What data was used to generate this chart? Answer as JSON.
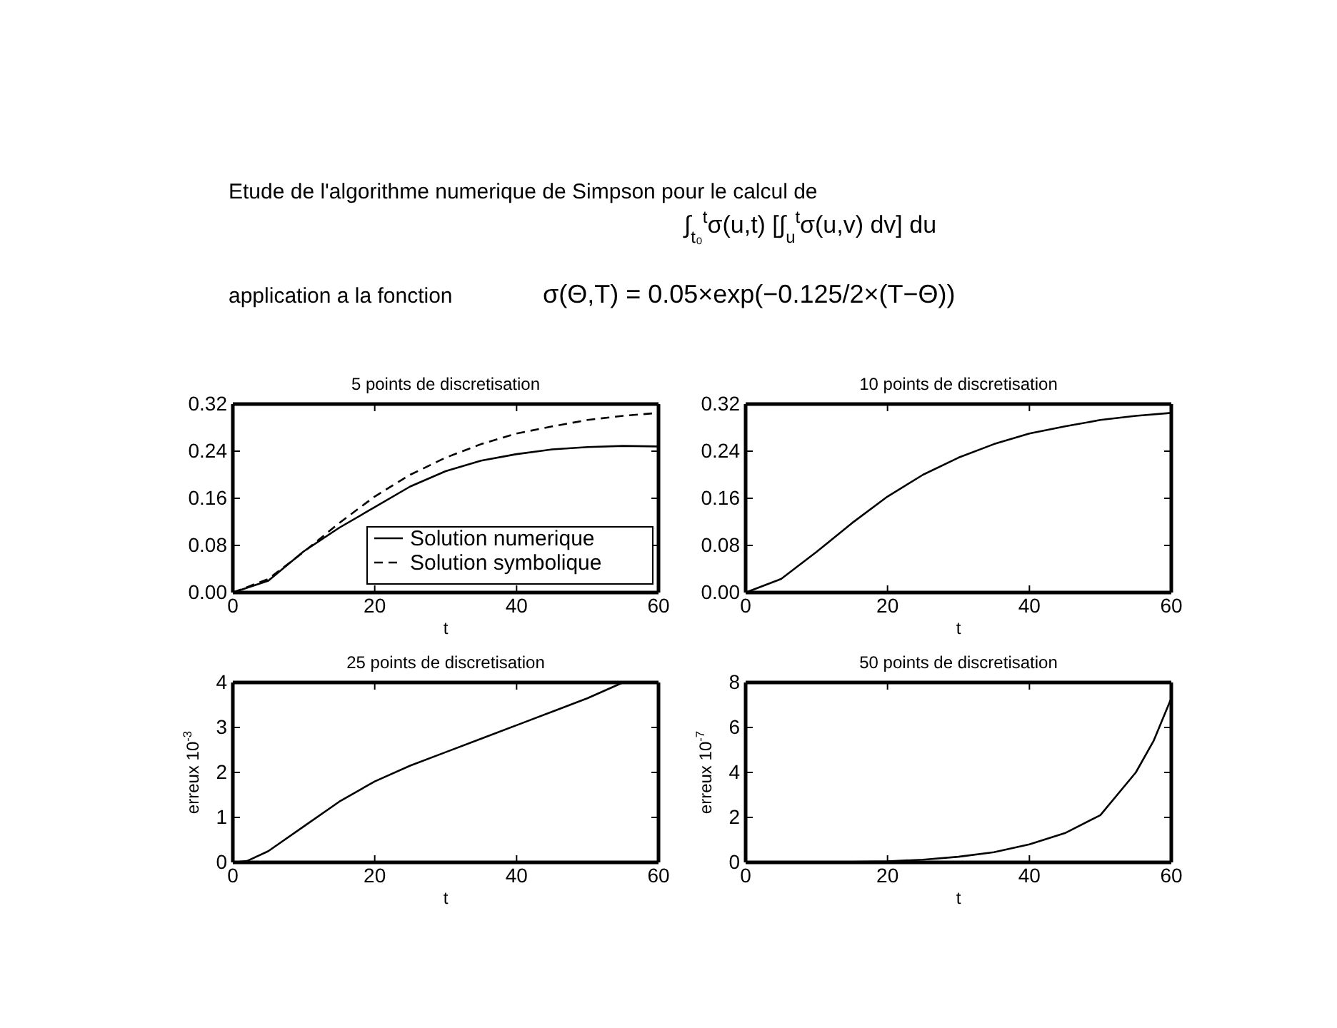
{
  "chart_data": [
    {
      "type": "other",
      "title": "Etude de l'algorithme numerique de Simpson pour le calcul de",
      "annotations": [
        "∫$_{t₀}$$^{t}$σ(u,t) [∫$_{u}$$^{t}$σ(u,v) dv] du",
        "application a la fonction",
        "σ(Θ,T) = 0.05×exp(−0.125/2×(T−Θ))"
      ]
    },
    {
      "type": "line",
      "title": "5 points de discretisation",
      "xlabel": "t",
      "x": [
        0,
        5,
        10,
        15,
        20,
        25,
        30,
        35,
        40,
        45,
        50,
        55,
        60
      ],
      "series": [
        {
          "name": "Solution numerique",
          "color": "#000000",
          "line_style": "solid",
          "values": [
            0,
            0.02,
            0.07,
            0.11,
            0.145,
            0.18,
            0.206,
            0.224,
            0.235,
            0.243,
            0.247,
            0.249,
            0.248
          ]
        },
        {
          "name": "Solution symbolique",
          "color": "#000000",
          "line_style": "dashed",
          "values": [
            0,
            0.023,
            0.069,
            0.118,
            0.163,
            0.2,
            0.229,
            0.252,
            0.27,
            0.282,
            0.293,
            0.3,
            0.305
          ]
        }
      ],
      "xlim": [
        0,
        60
      ],
      "xticks": [
        0,
        20,
        40,
        60
      ],
      "ylim": [
        0,
        0.32
      ],
      "yticks": [
        {
          "value": 0,
          "label": "0.00"
        },
        {
          "value": 0.08,
          "label": "0.08"
        },
        {
          "value": 0.16,
          "label": "0.16"
        },
        {
          "value": 0.24,
          "label": "0.24"
        },
        {
          "value": 0.32,
          "label": "0.32"
        }
      ],
      "legend": "bottom right",
      "grid": false
    },
    {
      "type": "line",
      "title": "10 points de discretisation",
      "xlabel": "t",
      "x": [
        0,
        5,
        10,
        15,
        20,
        25,
        30,
        35,
        40,
        45,
        50,
        55,
        60
      ],
      "series": [
        {
          "color": "#000000",
          "line_style": "solid",
          "values": [
            0,
            0.023,
            0.069,
            0.118,
            0.163,
            0.2,
            0.229,
            0.252,
            0.27,
            0.282,
            0.293,
            0.3,
            0.305
          ]
        }
      ],
      "xlim": [
        0,
        60
      ],
      "xticks": [
        0,
        20,
        40,
        60
      ],
      "ylim": [
        0,
        0.32
      ],
      "yticks": [
        {
          "value": 0,
          "label": "0.00"
        },
        {
          "value": 0.08,
          "label": "0.08"
        },
        {
          "value": 0.16,
          "label": "0.16"
        },
        {
          "value": 0.24,
          "label": "0.24"
        },
        {
          "value": 0.32,
          "label": "0.32"
        }
      ],
      "grid": false
    },
    {
      "type": "line",
      "title": "25 points de discretisation",
      "xlabel": "t",
      "ylabel": "erreux 10$^{-3}$",
      "x": [
        0,
        2,
        5,
        10,
        15,
        20,
        25,
        30,
        35,
        40,
        45,
        50,
        55
      ],
      "series": [
        {
          "color": "#000000",
          "line_style": "solid",
          "values": [
            0,
            0.03,
            0.25,
            0.8,
            1.35,
            1.8,
            2.15,
            2.45,
            2.75,
            3.05,
            3.35,
            3.65,
            4.0
          ]
        }
      ],
      "xlim": [
        0,
        60
      ],
      "xticks": [
        0,
        20,
        40,
        60
      ],
      "ylim": [
        0,
        4
      ],
      "yticks": [
        0,
        1,
        2,
        3,
        4
      ],
      "grid": false
    },
    {
      "type": "line",
      "title": "50 points de discretisation",
      "xlabel": "t",
      "ylabel": "erreux 10$^{-7}$",
      "x": [
        0,
        10,
        20,
        25,
        30,
        35,
        40,
        45,
        50,
        55,
        57.5,
        60
      ],
      "series": [
        {
          "color": "#000000",
          "line_style": "solid",
          "values": [
            0,
            0,
            0.05,
            0.12,
            0.25,
            0.45,
            0.8,
            1.3,
            2.1,
            4.0,
            5.4,
            7.3
          ]
        }
      ],
      "xlim": [
        0,
        60
      ],
      "xticks": [
        0,
        20,
        40,
        60
      ],
      "ylim": [
        0,
        8
      ],
      "yticks": [
        0,
        2,
        4,
        6,
        8
      ],
      "grid": false
    }
  ]
}
